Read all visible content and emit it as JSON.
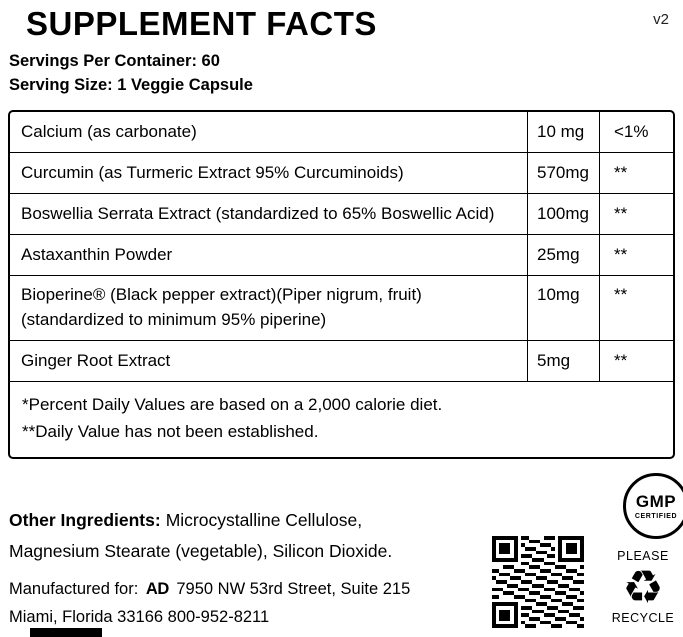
{
  "version_tag": "v2",
  "header": {
    "title": "SUPPLEMENT FACTS",
    "servings_per_container": "Servings Per Container: 60",
    "serving_size": "Serving Size: 1 Veggie Capsule"
  },
  "table": {
    "rows": [
      {
        "name": "Calcium  (as carbonate)",
        "amount": "10 mg",
        "dv": "<1%"
      },
      {
        "name": "Curcumin (as Turmeric Extract 95% Curcuminoids)",
        "amount": "570mg",
        "dv": "**"
      },
      {
        "name": "Boswellia Serrata Extract (standardized to 65% Boswellic Acid)",
        "amount": "100mg",
        "dv": "**"
      },
      {
        "name": "Astaxanthin Powder",
        "amount": "25mg",
        "dv": "**"
      },
      {
        "name": "Bioperine® (Black pepper extract)(Piper nigrum, fruit)",
        "name_line2": "(standardized to minimum 95% piperine)",
        "amount": "10mg",
        "dv": "**"
      },
      {
        "name": "Ginger Root Extract",
        "amount": "5mg",
        "dv": "**"
      }
    ],
    "footnote1": "*Percent Daily Values are based on a 2,000 calorie diet.",
    "footnote2": "**Daily Value has not been established."
  },
  "other_ingredients": {
    "label": "Other Ingredients:",
    "line1_rest": "Microcystalline Cellulose,",
    "line2": "Magnesium Stearate (vegetable), Silicon Dioxide."
  },
  "manufactured": {
    "label": "Manufactured for:",
    "logo_text": "AD",
    "address_line1": "7950 NW 53rd Street, Suite 215",
    "address_line2": "Miami, Florida 33166 800-952-8211"
  },
  "badges": {
    "gmp_title": "GMP",
    "gmp_subtitle": "CERTIFIED",
    "recycle_top": "PLEASE",
    "recycle_icon": "♻",
    "recycle_bottom": "RECYCLE"
  }
}
